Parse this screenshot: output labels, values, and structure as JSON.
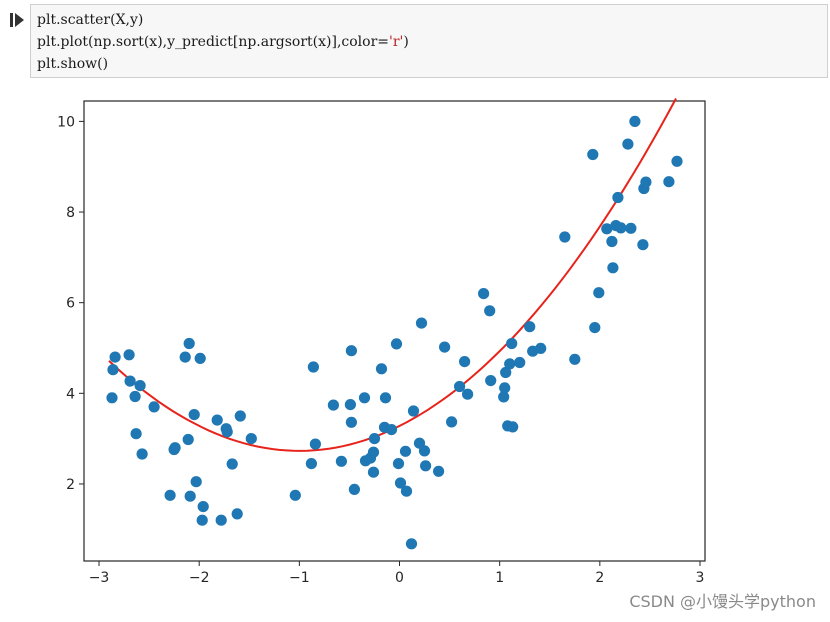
{
  "code": {
    "line1": "plt.scatter(X,y)",
    "line2_a": "plt.plot(np.sort(x),y_predict[np.argsort(x)],color=",
    "line2_str": "'r'",
    "line2_b": ")",
    "line3": "plt.show()"
  },
  "watermark": "CSDN @小馒头学python",
  "colors": {
    "points": "#1f77b4",
    "line": "#e8231b"
  },
  "chart_data": {
    "type": "scatter",
    "title": "",
    "xlabel": "",
    "ylabel": "",
    "xlim": [
      -3.15,
      3.05
    ],
    "ylim": [
      0.3,
      10.45
    ],
    "xticks": [
      "−3",
      "−2",
      "−1",
      "0",
      "1",
      "2",
      "3"
    ],
    "xtick_values": [
      -3,
      -2,
      -1,
      0,
      1,
      2,
      3
    ],
    "yticks": [
      "2",
      "4",
      "6",
      "8",
      "10"
    ],
    "ytick_values": [
      2,
      4,
      6,
      8,
      10
    ],
    "grid": false,
    "series": [
      {
        "kind": "scatter",
        "points": [
          [
            -2.87,
            3.9
          ],
          [
            -2.86,
            4.52
          ],
          [
            -2.84,
            4.8
          ],
          [
            -2.7,
            4.85
          ],
          [
            -2.69,
            4.27
          ],
          [
            -2.64,
            3.93
          ],
          [
            -2.63,
            3.11
          ],
          [
            -2.59,
            4.17
          ],
          [
            -2.57,
            2.66
          ],
          [
            -2.45,
            3.7
          ],
          [
            -2.29,
            1.75
          ],
          [
            -2.25,
            2.76
          ],
          [
            -2.24,
            2.8
          ],
          [
            -2.14,
            4.8
          ],
          [
            -2.11,
            2.98
          ],
          [
            -2.1,
            5.1
          ],
          [
            -2.09,
            1.73
          ],
          [
            -2.05,
            3.53
          ],
          [
            -2.03,
            2.05
          ],
          [
            -1.99,
            4.77
          ],
          [
            -1.96,
            1.5
          ],
          [
            -1.97,
            1.2
          ],
          [
            -1.82,
            3.41
          ],
          [
            -1.78,
            1.2
          ],
          [
            -1.73,
            3.22
          ],
          [
            -1.72,
            3.15
          ],
          [
            -1.67,
            2.44
          ],
          [
            -1.62,
            1.34
          ],
          [
            -1.59,
            3.5
          ],
          [
            -1.48,
            3.0
          ],
          [
            -1.04,
            1.75
          ],
          [
            -0.88,
            2.45
          ],
          [
            -0.86,
            4.58
          ],
          [
            -0.84,
            2.88
          ],
          [
            -0.66,
            3.74
          ],
          [
            -0.58,
            2.5
          ],
          [
            -0.49,
            3.75
          ],
          [
            -0.48,
            3.36
          ],
          [
            -0.48,
            4.94
          ],
          [
            -0.45,
            1.88
          ],
          [
            -0.35,
            3.9
          ],
          [
            -0.34,
            2.51
          ],
          [
            -0.29,
            2.57
          ],
          [
            -0.26,
            2.7
          ],
          [
            -0.26,
            2.26
          ],
          [
            -0.25,
            3.0
          ],
          [
            -0.18,
            4.54
          ],
          [
            -0.15,
            3.25
          ],
          [
            -0.14,
            3.9
          ],
          [
            -0.08,
            3.2
          ],
          [
            -0.03,
            5.09
          ],
          [
            -0.01,
            2.45
          ],
          [
            0.01,
            2.02
          ],
          [
            0.06,
            2.72
          ],
          [
            0.07,
            1.84
          ],
          [
            0.12,
            0.68
          ],
          [
            0.14,
            3.61
          ],
          [
            0.2,
            2.9
          ],
          [
            0.22,
            5.55
          ],
          [
            0.25,
            2.73
          ],
          [
            0.26,
            2.4
          ],
          [
            0.39,
            2.28
          ],
          [
            0.45,
            5.02
          ],
          [
            0.52,
            3.37
          ],
          [
            0.6,
            4.15
          ],
          [
            0.65,
            4.7
          ],
          [
            0.68,
            3.98
          ],
          [
            0.84,
            6.2
          ],
          [
            0.9,
            5.82
          ],
          [
            0.91,
            4.28
          ],
          [
            1.04,
            3.92
          ],
          [
            1.05,
            4.12
          ],
          [
            1.06,
            4.46
          ],
          [
            1.08,
            3.28
          ],
          [
            1.1,
            4.65
          ],
          [
            1.12,
            5.1
          ],
          [
            1.13,
            3.26
          ],
          [
            1.2,
            4.68
          ],
          [
            1.3,
            5.47
          ],
          [
            1.33,
            4.93
          ],
          [
            1.41,
            4.99
          ],
          [
            1.65,
            7.45
          ],
          [
            1.75,
            4.75
          ],
          [
            1.93,
            9.27
          ],
          [
            1.95,
            5.45
          ],
          [
            1.99,
            6.22
          ],
          [
            2.07,
            7.63
          ],
          [
            2.12,
            7.35
          ],
          [
            2.13,
            6.77
          ],
          [
            2.16,
            7.7
          ],
          [
            2.18,
            8.32
          ],
          [
            2.21,
            7.65
          ],
          [
            2.28,
            9.5
          ],
          [
            2.31,
            7.64
          ],
          [
            2.35,
            10.0
          ],
          [
            2.43,
            7.28
          ],
          [
            2.44,
            8.52
          ],
          [
            2.46,
            8.66
          ],
          [
            2.69,
            8.67
          ],
          [
            2.77,
            9.12
          ]
        ]
      },
      {
        "kind": "line",
        "fit": {
          "a": 0.55,
          "b": 1.1,
          "c": 3.28,
          "x_start": -2.9,
          "x_end": 2.76
        }
      }
    ]
  }
}
